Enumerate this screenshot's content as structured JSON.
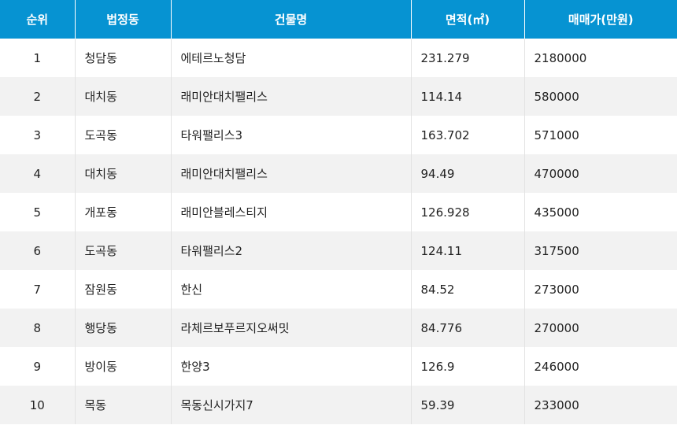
{
  "table": {
    "headers": [
      "순위",
      "법정동",
      "건물명",
      "면적(㎡)",
      "매매가(만원)"
    ],
    "rows": [
      [
        "1",
        "청담동",
        "에테르노청담",
        "231.279",
        "2180000"
      ],
      [
        "2",
        "대치동",
        "래미안대치팰리스",
        "114.14",
        "580000"
      ],
      [
        "3",
        "도곡동",
        "타워팰리스3",
        "163.702",
        "571000"
      ],
      [
        "4",
        "대치동",
        "래미안대치팰리스",
        "94.49",
        "470000"
      ],
      [
        "5",
        "개포동",
        "래미안블레스티지",
        "126.928",
        "435000"
      ],
      [
        "6",
        "도곡동",
        "타워팰리스2",
        "124.11",
        "317500"
      ],
      [
        "7",
        "잠원동",
        "한신",
        "84.52",
        "273000"
      ],
      [
        "8",
        "행당동",
        "라체르보푸르지오써밋",
        "84.776",
        "270000"
      ],
      [
        "9",
        "방이동",
        "한양3",
        "126.9",
        "246000"
      ],
      [
        "10",
        "목동",
        "목동신시가지7",
        "59.39",
        "233000"
      ]
    ]
  },
  "colors": {
    "header_bg": "#0693d2",
    "header_text": "#ffffff",
    "row_alt_bg": "#f2f2f2"
  }
}
